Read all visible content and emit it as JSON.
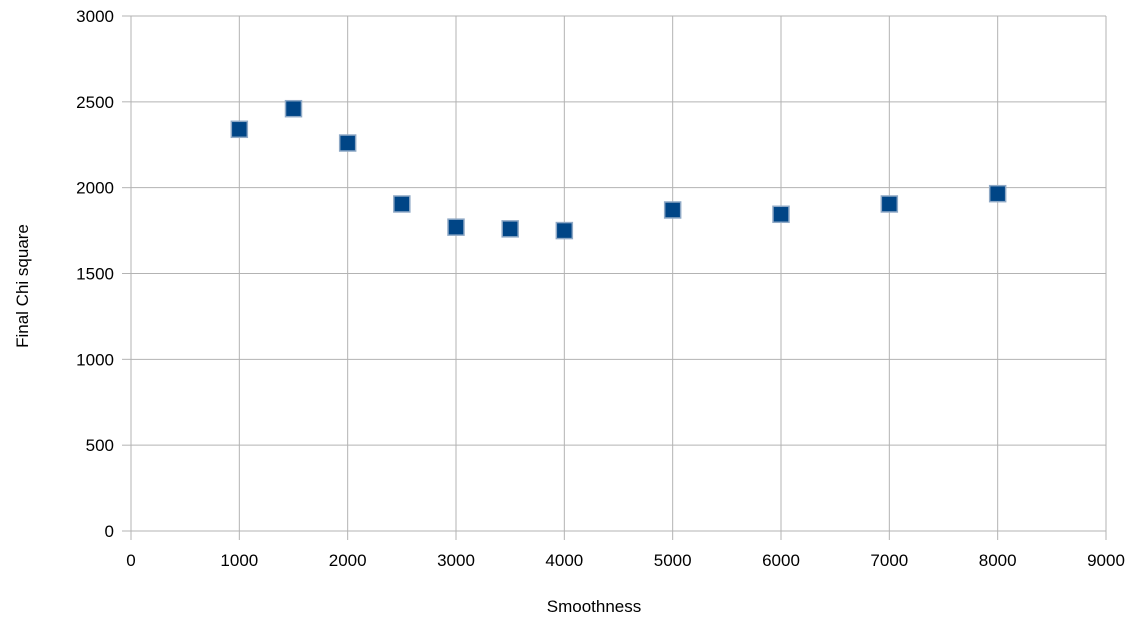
{
  "chart_data": {
    "type": "scatter",
    "title": "",
    "xlabel": "Smoothness",
    "ylabel": "Final Chi square",
    "xlim": [
      0,
      9000
    ],
    "ylim": [
      0,
      3000
    ],
    "x_ticks": [
      0,
      1000,
      2000,
      3000,
      4000,
      5000,
      6000,
      7000,
      8000,
      9000
    ],
    "y_ticks": [
      0,
      500,
      1000,
      1500,
      2000,
      2500,
      3000
    ],
    "grid": true,
    "legend": "none",
    "marker": "square",
    "colors": {
      "marker_fill": "#004586",
      "marker_edge": "#8fa9c6",
      "grid": "#b3b3b3"
    },
    "series": [
      {
        "points": [
          {
            "x": 1000,
            "y": 2340
          },
          {
            "x": 1500,
            "y": 2460
          },
          {
            "x": 2000,
            "y": 2260
          },
          {
            "x": 2500,
            "y": 1905
          },
          {
            "x": 3000,
            "y": 1770
          },
          {
            "x": 3500,
            "y": 1760
          },
          {
            "x": 4000,
            "y": 1750
          },
          {
            "x": 5000,
            "y": 1870
          },
          {
            "x": 6000,
            "y": 1845
          },
          {
            "x": 7000,
            "y": 1905
          },
          {
            "x": 8000,
            "y": 1965
          }
        ]
      }
    ]
  }
}
